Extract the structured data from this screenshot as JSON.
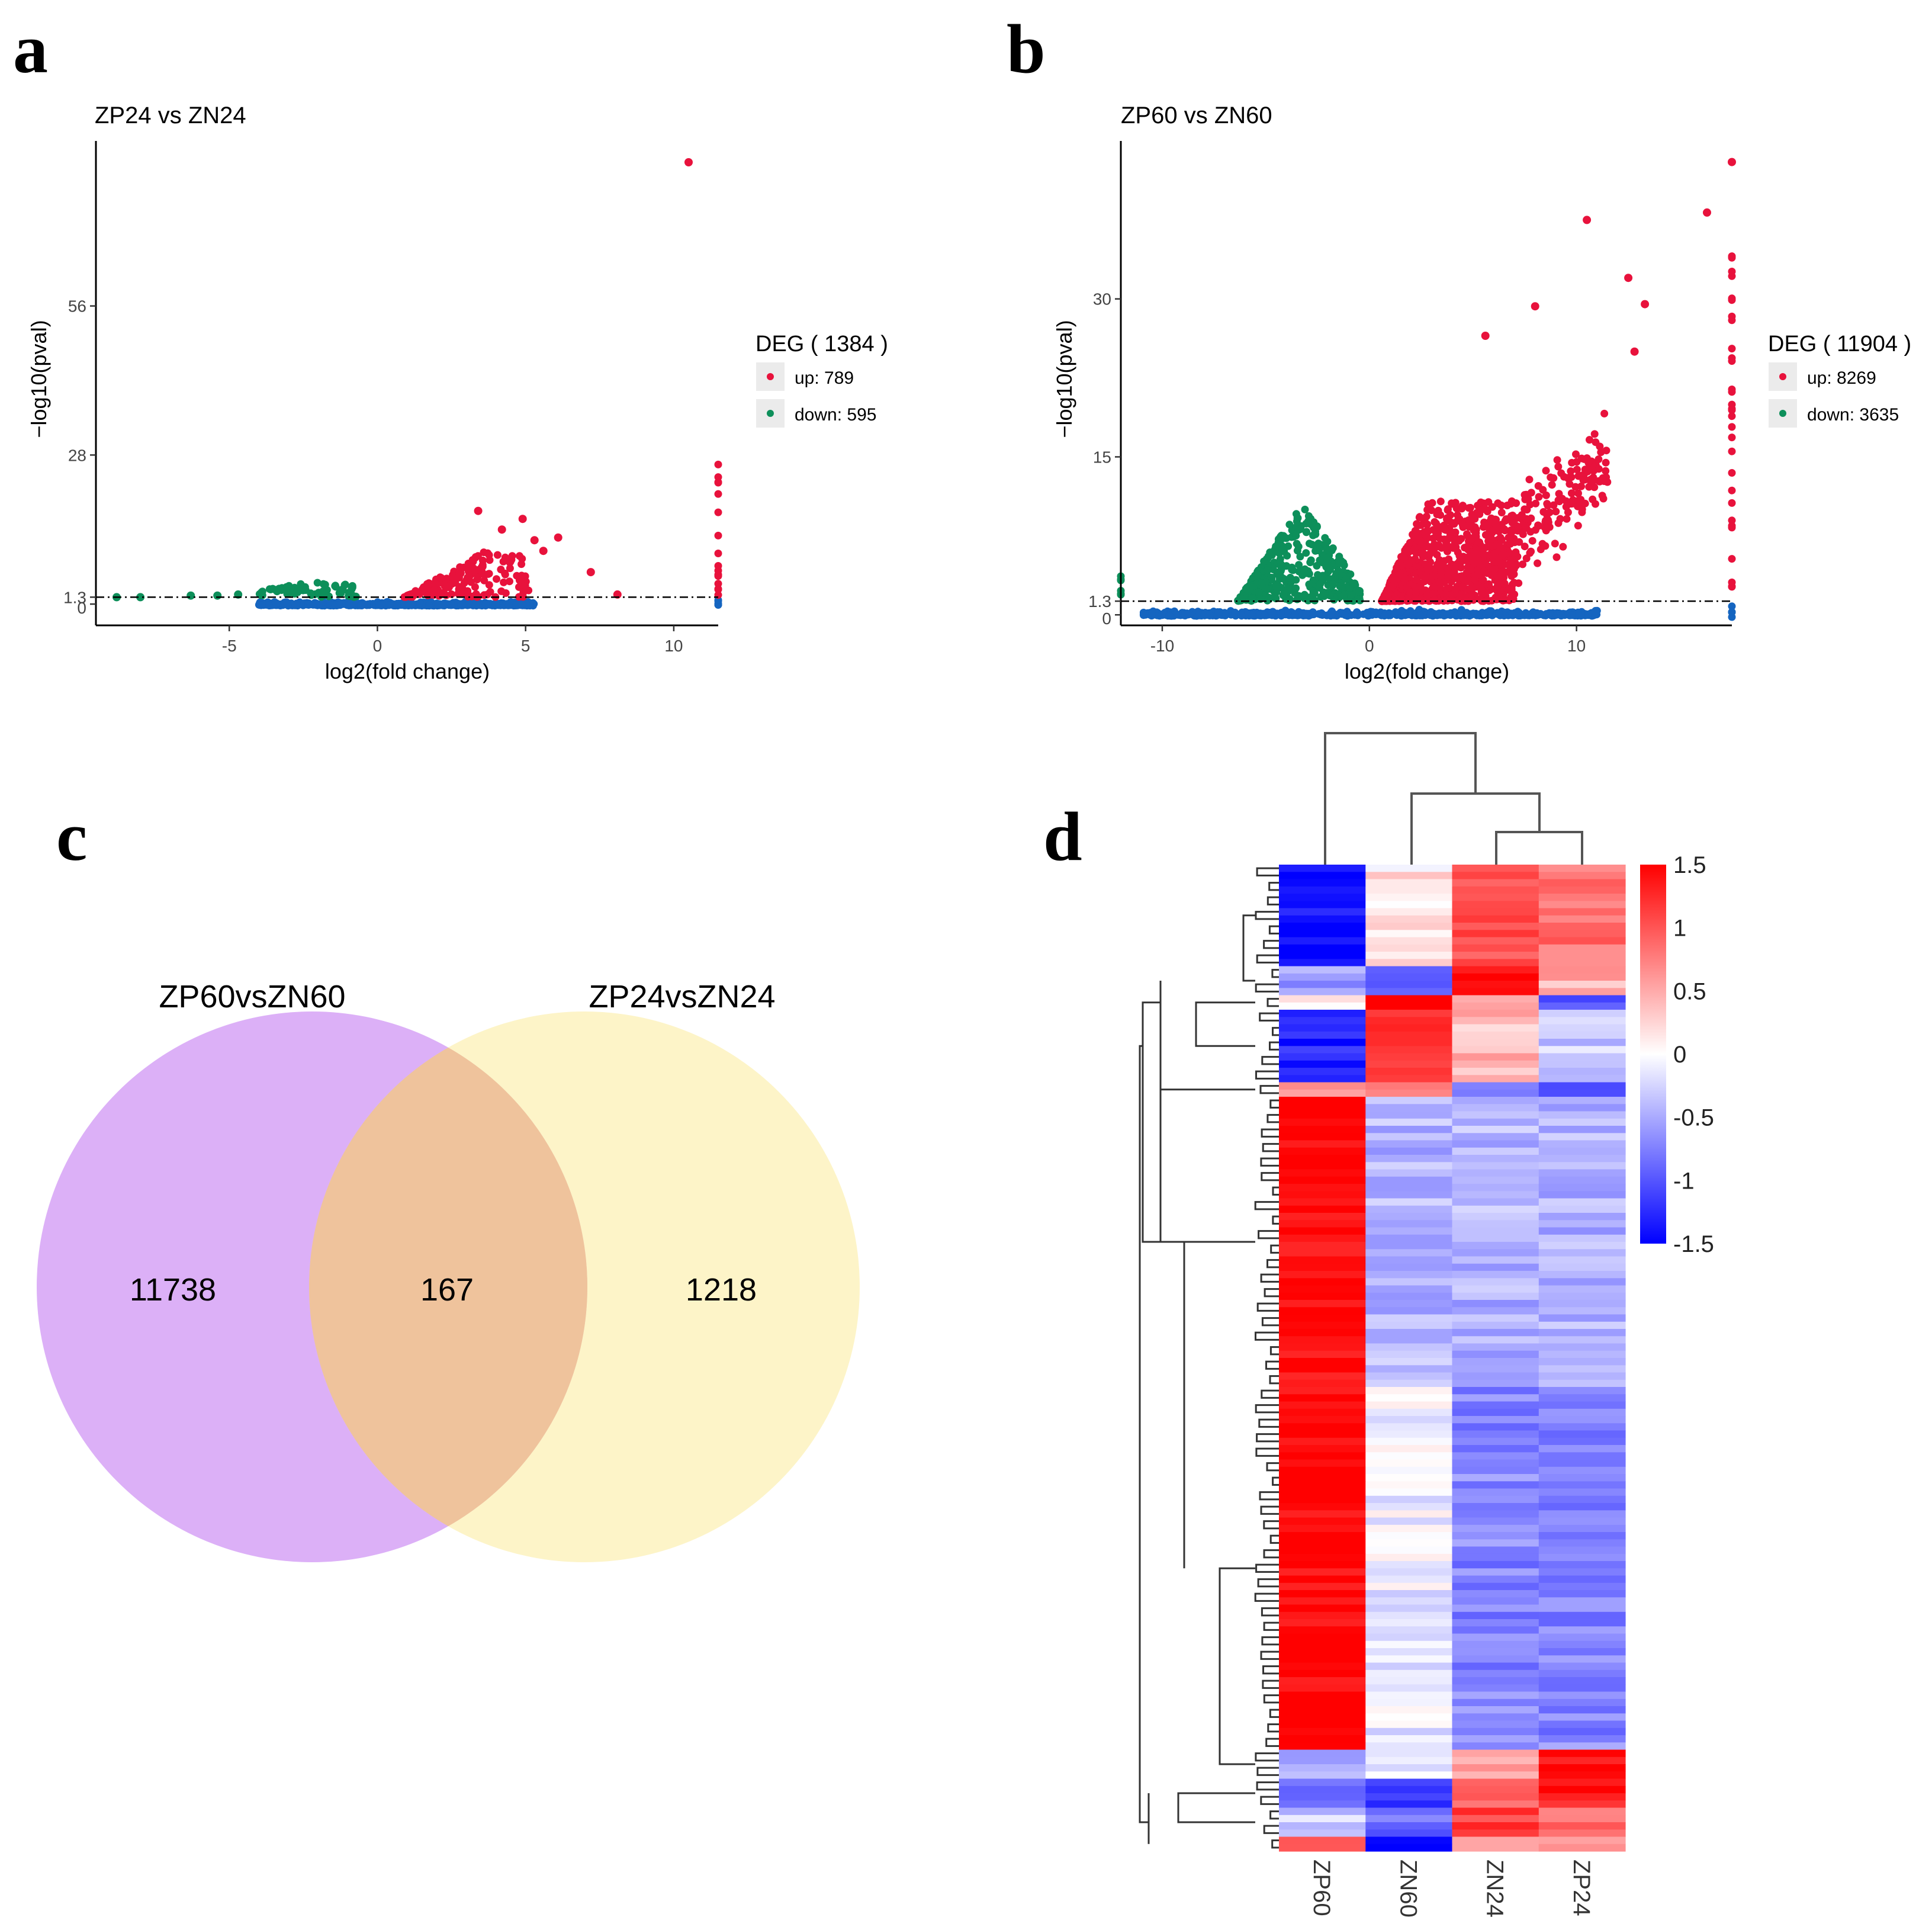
{
  "panels": {
    "a": "a",
    "b": "b",
    "c": "c",
    "d": "d"
  },
  "colors": {
    "up": "#e8123c",
    "down": "#0d8f5a",
    "ns": "#1565c0",
    "venn_left": "#dcb0f7",
    "venn_right": "#fcea91",
    "heat_high": "#ff0000",
    "heat_mid": "#ffffff",
    "heat_low": "#0000ff"
  },
  "chart_data": [
    {
      "type": "scatter",
      "title": "ZP24 vs ZN24",
      "xlabel": "log2(fold change)",
      "ylabel": "−log10(pval)",
      "xlim": [
        -9.5,
        11.5
      ],
      "ylim": [
        -4,
        87
      ],
      "xticks": [
        -5,
        0,
        5,
        10
      ],
      "yticks": [
        0,
        1.3,
        28,
        56
      ],
      "threshold": 1.3,
      "legend": {
        "title": "DEG ( 1384 )",
        "items": [
          "up: 789",
          "down: 595"
        ],
        "position": "right"
      },
      "notable_points": [
        {
          "x": 10.5,
          "y": 83,
          "class": "up"
        },
        {
          "x": 3.4,
          "y": 17.5,
          "class": "up"
        },
        {
          "x": 4.9,
          "y": 16,
          "class": "up"
        },
        {
          "x": 4.2,
          "y": 14,
          "class": "up"
        },
        {
          "x": 5.3,
          "y": 12,
          "class": "up"
        },
        {
          "x": 6.1,
          "y": 12.5,
          "class": "up"
        },
        {
          "x": 5.6,
          "y": 10,
          "class": "up"
        },
        {
          "x": 7.2,
          "y": 6,
          "class": "up"
        },
        {
          "x": 8.1,
          "y": 1.8,
          "class": "up"
        },
        {
          "x": -8.8,
          "y": 1.3,
          "class": "down"
        },
        {
          "x": -8.0,
          "y": 1.3,
          "class": "down"
        },
        {
          "x": -6.3,
          "y": 1.6,
          "class": "down"
        },
        {
          "x": -5.4,
          "y": 1.6,
          "class": "down"
        },
        {
          "x": -4.7,
          "y": 1.8,
          "class": "down"
        }
      ]
    },
    {
      "type": "scatter",
      "title": "ZP60 vs ZN60",
      "xlabel": "log2(fold change)",
      "ylabel": "−log10(pval)",
      "xlim": [
        -12,
        17.5
      ],
      "ylim": [
        -1,
        45
      ],
      "xticks": [
        -10,
        0,
        10
      ],
      "yticks": [
        0,
        1.3,
        15,
        30
      ],
      "threshold": 1.3,
      "legend": {
        "title": "DEG ( 11904 )",
        "items": [
          "up: 8269",
          "down: 3635"
        ],
        "position": "right"
      },
      "notable_points": [
        {
          "x": 17.5,
          "y": 43,
          "class": "up"
        },
        {
          "x": 16.3,
          "y": 38.2,
          "class": "up"
        },
        {
          "x": 10.5,
          "y": 37.5,
          "class": "up"
        },
        {
          "x": 12.5,
          "y": 32,
          "class": "up"
        },
        {
          "x": 8,
          "y": 29.3,
          "class": "up"
        },
        {
          "x": 13.3,
          "y": 29.5,
          "class": "up"
        },
        {
          "x": 5.6,
          "y": 26.5,
          "class": "up"
        },
        {
          "x": 12.8,
          "y": 25,
          "class": "up"
        }
      ]
    },
    {
      "type": "venn",
      "sets": [
        "ZP60vsZN60",
        "ZP24vsZN24"
      ],
      "values": {
        "left_only": "11738",
        "both": "167",
        "right_only": "1218"
      }
    },
    {
      "type": "heatmap",
      "columns": [
        "ZP60",
        "ZN60",
        "ZN24",
        "ZP24"
      ],
      "colorbar": {
        "min": -1.5,
        "max": 1.5,
        "ticks": [
          "1.5",
          "1",
          "0.5",
          "0",
          "-0.5",
          "-1",
          "-1.5"
        ]
      },
      "row_blocks": [
        {
          "n": 14,
          "values": [
            -1.45,
            0.15,
            1.0,
            0.8
          ]
        },
        {
          "n": 4,
          "values": [
            -0.6,
            -0.9,
            1.45,
            0.5
          ]
        },
        {
          "n": 2,
          "values": [
            0.1,
            1.5,
            0.4,
            -0.9
          ]
        },
        {
          "n": 10,
          "values": [
            -1.3,
            1.3,
            0.4,
            -0.3
          ]
        },
        {
          "n": 2,
          "values": [
            0.6,
            0.9,
            -0.7,
            -1.0
          ]
        },
        {
          "n": 40,
          "values": [
            1.5,
            -0.45,
            -0.45,
            -0.45
          ]
        },
        {
          "n": 50,
          "values": [
            1.5,
            -0.1,
            -0.7,
            -0.7
          ]
        },
        {
          "n": 4,
          "values": [
            -0.5,
            -0.2,
            0.5,
            1.5
          ]
        },
        {
          "n": 4,
          "values": [
            -0.8,
            -1.3,
            0.8,
            1.4
          ]
        },
        {
          "n": 4,
          "values": [
            -0.3,
            -0.9,
            1.1,
            0.8
          ]
        },
        {
          "n": 2,
          "values": [
            0.8,
            -1.5,
            0.6,
            0.7
          ]
        }
      ]
    }
  ]
}
